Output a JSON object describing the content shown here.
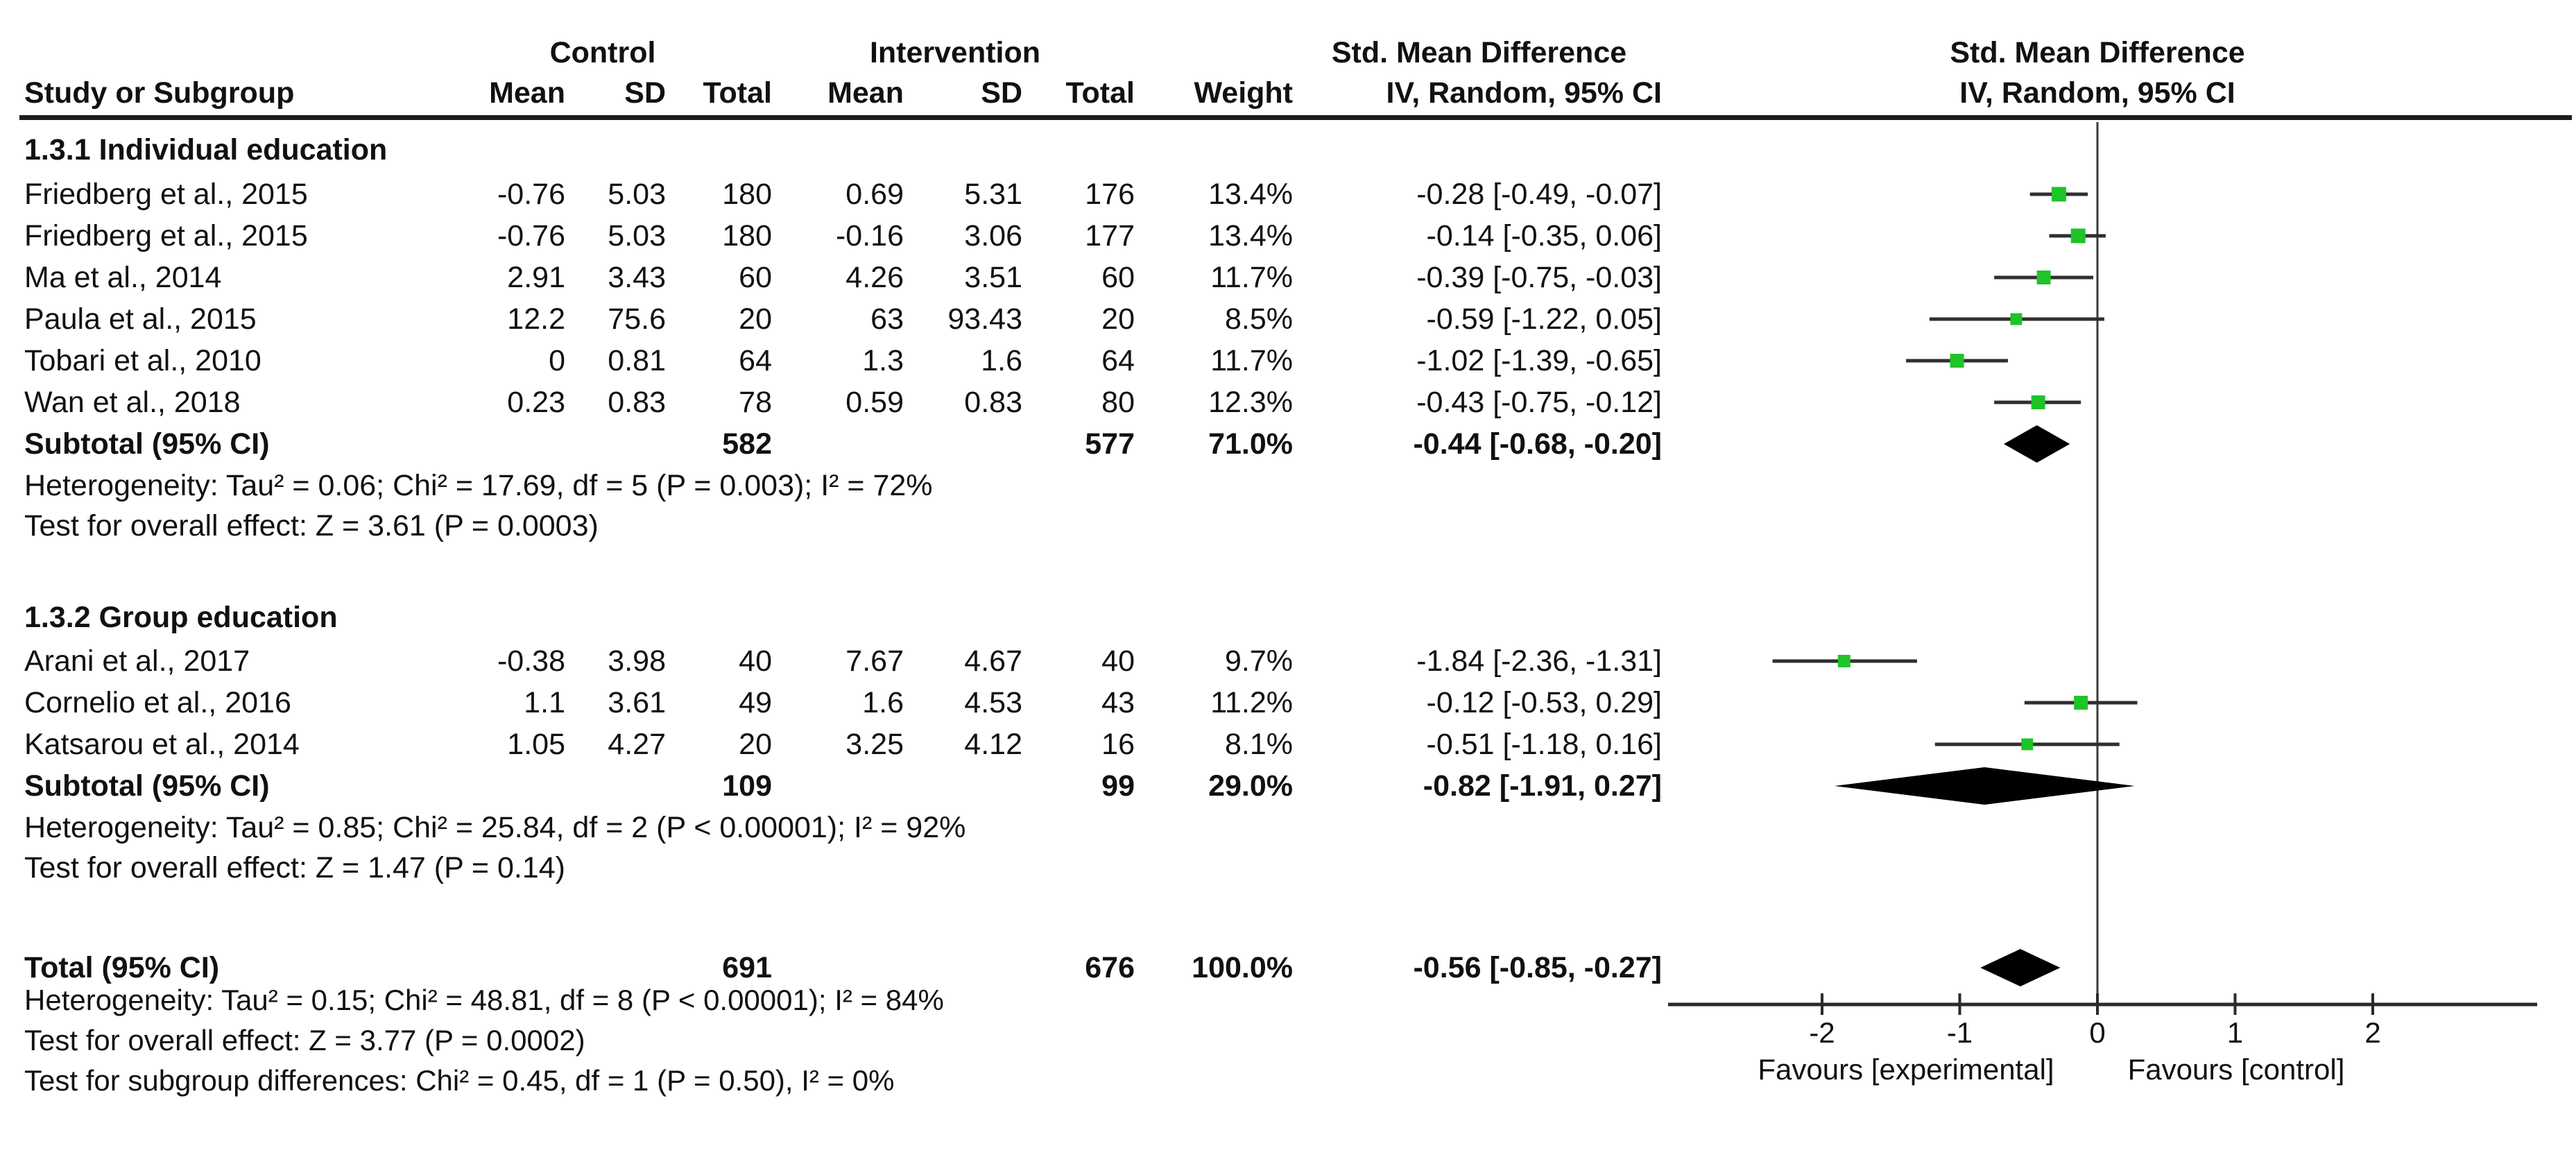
{
  "header": {
    "control": "Control",
    "intervention": "Intervention",
    "smd": "Std. Mean Difference",
    "iv": "IV, Random, 95% CI"
  },
  "columns": {
    "study": "Study or Subgroup",
    "mean": "Mean",
    "sd": "SD",
    "total": "Total",
    "weight": "Weight",
    "iv": "IV, Random, 95% CI"
  },
  "chart_data": {
    "type": "forest",
    "effect_measure": "Std. Mean Difference",
    "model": "IV, Random, 95% CI",
    "groups": [
      {
        "title": "1.3.1 Individual education",
        "studies": [
          {
            "name": "Friedberg et al., 2015",
            "c_mean": "-0.76",
            "c_sd": "5.03",
            "c_total": "180",
            "i_mean": "0.69",
            "i_sd": "5.31",
            "i_total": "176",
            "weight": "13.4%",
            "ci_text": "-0.28 [-0.49, -0.07]",
            "est": -0.28,
            "lo": -0.49,
            "hi": -0.07,
            "weight_pct": 13.4
          },
          {
            "name": "Friedberg et al., 2015",
            "c_mean": "-0.76",
            "c_sd": "5.03",
            "c_total": "180",
            "i_mean": "-0.16",
            "i_sd": "3.06",
            "i_total": "177",
            "weight": "13.4%",
            "ci_text": "-0.14 [-0.35, 0.06]",
            "est": -0.14,
            "lo": -0.35,
            "hi": 0.06,
            "weight_pct": 13.4
          },
          {
            "name": "Ma et al., 2014",
            "c_mean": "2.91",
            "c_sd": "3.43",
            "c_total": "60",
            "i_mean": "4.26",
            "i_sd": "3.51",
            "i_total": "60",
            "weight": "11.7%",
            "ci_text": "-0.39 [-0.75, -0.03]",
            "est": -0.39,
            "lo": -0.75,
            "hi": -0.03,
            "weight_pct": 11.7
          },
          {
            "name": "Paula et al., 2015",
            "c_mean": "12.2",
            "c_sd": "75.6",
            "c_total": "20",
            "i_mean": "63",
            "i_sd": "93.43",
            "i_total": "20",
            "weight": "8.5%",
            "ci_text": "-0.59 [-1.22, 0.05]",
            "est": -0.59,
            "lo": -1.22,
            "hi": 0.05,
            "weight_pct": 8.5
          },
          {
            "name": "Tobari et al., 2010",
            "c_mean": "0",
            "c_sd": "0.81",
            "c_total": "64",
            "i_mean": "1.3",
            "i_sd": "1.6",
            "i_total": "64",
            "weight": "11.7%",
            "ci_text": "-1.02 [-1.39, -0.65]",
            "est": -1.02,
            "lo": -1.39,
            "hi": -0.65,
            "weight_pct": 11.7
          },
          {
            "name": "Wan et al., 2018",
            "c_mean": "0.23",
            "c_sd": "0.83",
            "c_total": "78",
            "i_mean": "0.59",
            "i_sd": "0.83",
            "i_total": "80",
            "weight": "12.3%",
            "ci_text": "-0.43 [-0.75, -0.12]",
            "est": -0.43,
            "lo": -0.75,
            "hi": -0.12,
            "weight_pct": 12.3
          }
        ],
        "subtotal": {
          "name": "Subtotal (95% CI)",
          "c_total": "582",
          "i_total": "577",
          "weight": "71.0%",
          "ci_text": "-0.44 [-0.68, -0.20]",
          "est": -0.44,
          "lo": -0.68,
          "hi": -0.2
        },
        "heterogeneity": "Heterogeneity: Tau² = 0.06; Chi² = 17.69, df = 5 (P = 0.003); I² = 72%",
        "overall_effect": "Test for overall effect: Z = 3.61 (P = 0.0003)"
      },
      {
        "title": "1.3.2 Group education",
        "studies": [
          {
            "name": "Arani et al., 2017",
            "c_mean": "-0.38",
            "c_sd": "3.98",
            "c_total": "40",
            "i_mean": "7.67",
            "i_sd": "4.67",
            "i_total": "40",
            "weight": "9.7%",
            "ci_text": "-1.84 [-2.36, -1.31]",
            "est": -1.84,
            "lo": -2.36,
            "hi": -1.31,
            "weight_pct": 9.7
          },
          {
            "name": "Cornelio et al., 2016",
            "c_mean": "1.1",
            "c_sd": "3.61",
            "c_total": "49",
            "i_mean": "1.6",
            "i_sd": "4.53",
            "i_total": "43",
            "weight": "11.2%",
            "ci_text": "-0.12 [-0.53, 0.29]",
            "est": -0.12,
            "lo": -0.53,
            "hi": 0.29,
            "weight_pct": 11.2
          },
          {
            "name": "Katsarou et al., 2014",
            "c_mean": "1.05",
            "c_sd": "4.27",
            "c_total": "20",
            "i_mean": "3.25",
            "i_sd": "4.12",
            "i_total": "16",
            "weight": "8.1%",
            "ci_text": "-0.51 [-1.18, 0.16]",
            "est": -0.51,
            "lo": -1.18,
            "hi": 0.16,
            "weight_pct": 8.1
          }
        ],
        "subtotal": {
          "name": "Subtotal (95% CI)",
          "c_total": "109",
          "i_total": "99",
          "weight": "29.0%",
          "ci_text": "-0.82 [-1.91, 0.27]",
          "est": -0.82,
          "lo": -1.91,
          "hi": 0.27
        },
        "heterogeneity": "Heterogeneity: Tau² = 0.85; Chi² = 25.84, df = 2 (P < 0.00001); I² = 92%",
        "overall_effect": "Test for overall effect: Z = 1.47 (P = 0.14)"
      }
    ],
    "total": {
      "name": "Total (95% CI)",
      "c_total": "691",
      "i_total": "676",
      "weight": "100.0%",
      "ci_text": "-0.56 [-0.85, -0.27]",
      "est": -0.56,
      "lo": -0.85,
      "hi": -0.27
    },
    "total_heterogeneity": "Heterogeneity: Tau² = 0.15; Chi² = 48.81, df = 8 (P < 0.00001); I² = 84%",
    "total_overall": "Test for overall effect: Z = 3.77 (P = 0.0002)",
    "subgroup_diff": "Test for subgroup differences: Chi² = 0.45, df = 1 (P = 0.50), I² = 0%",
    "axis": {
      "ticks": [
        -2,
        -1,
        0,
        1,
        2
      ],
      "xlim": [
        -3.1,
        3.2
      ],
      "favours_left": "Favours [experimental]",
      "favours_right": "Favours [control]"
    },
    "colors": {
      "square": "#1ec428",
      "diamond": "#000000",
      "line": "#2f2f2f",
      "axis": "#2a2a2a"
    }
  }
}
